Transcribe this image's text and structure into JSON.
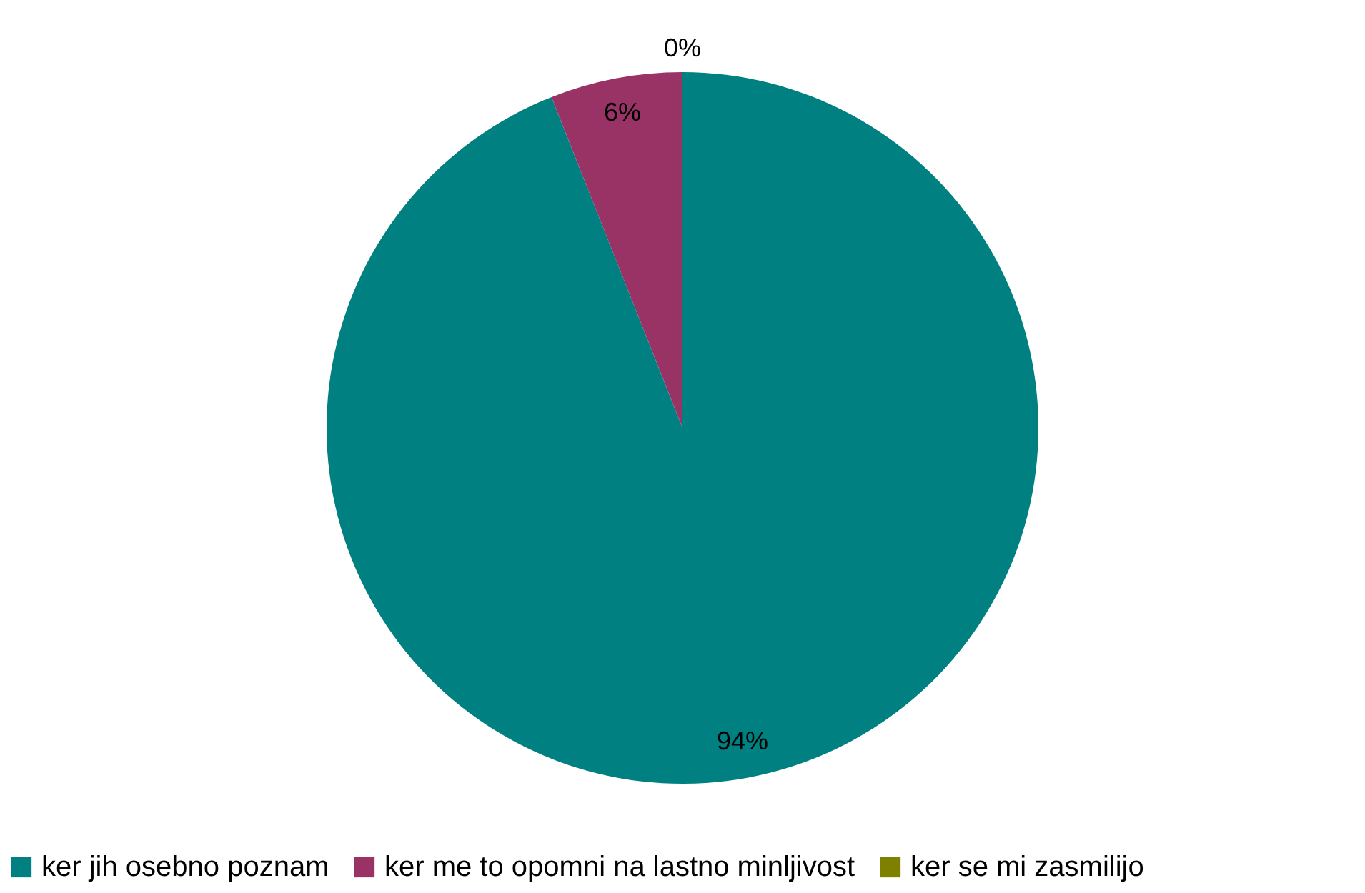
{
  "chart_data": {
    "type": "pie",
    "categories": [
      "ker jih osebno poznam",
      "ker me to opomni na lastno minljivost",
      "ker se mi zasmilijo"
    ],
    "values": [
      94,
      6,
      0
    ],
    "colors": [
      "#008080",
      "#993366",
      "#808000"
    ],
    "value_labels": [
      "94%",
      "6%",
      "0%"
    ],
    "legend": "bottom"
  }
}
